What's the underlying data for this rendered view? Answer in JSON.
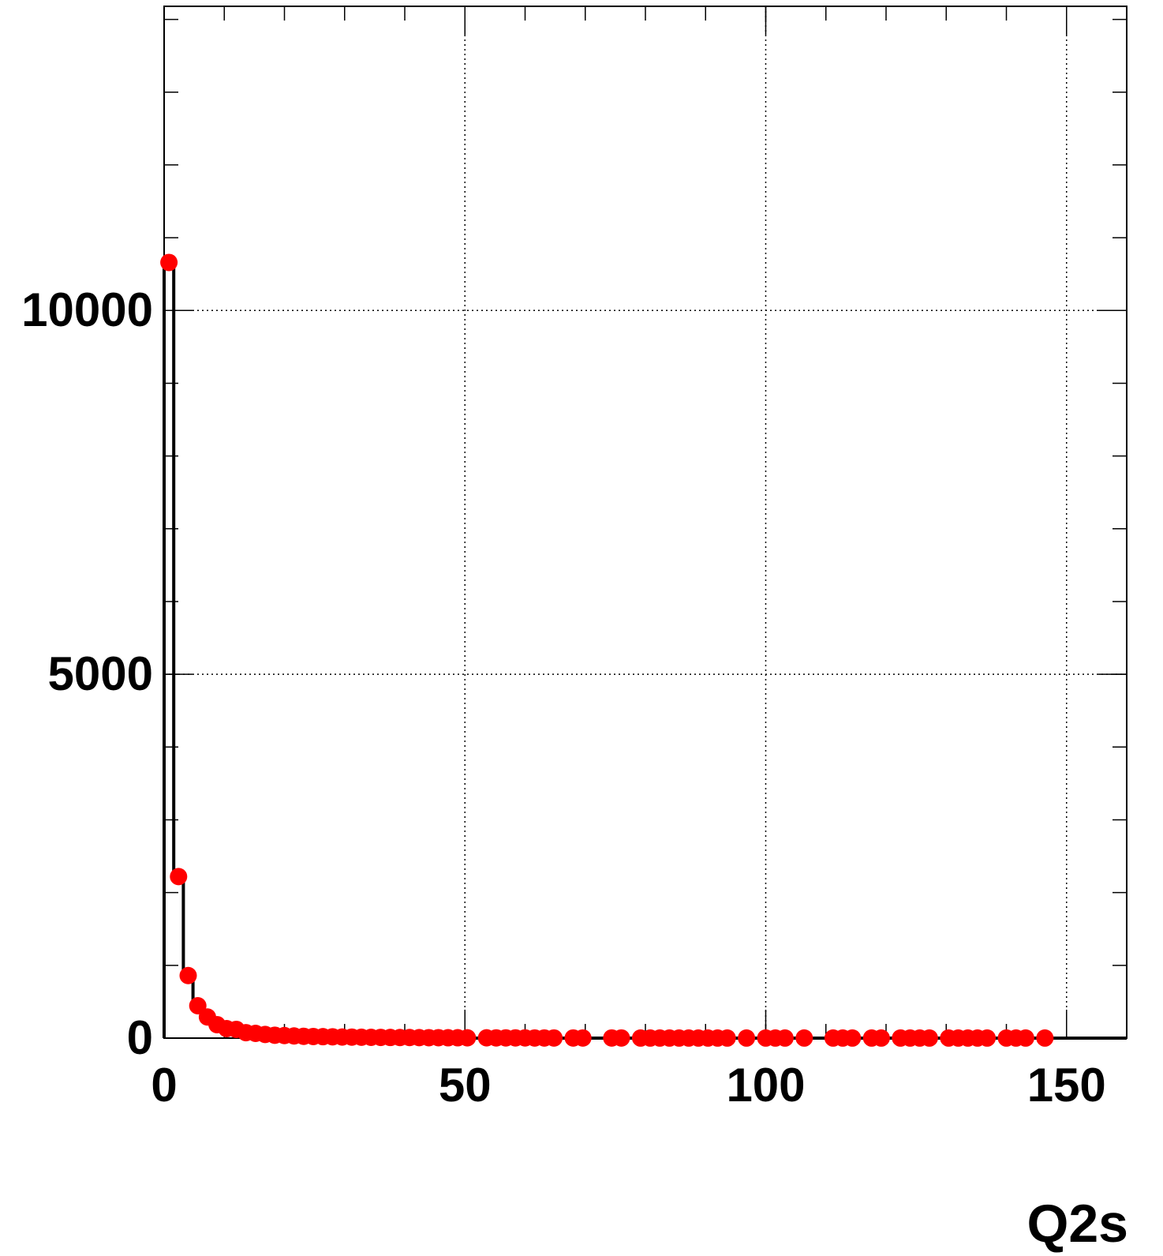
{
  "chart_data": {
    "type": "histogram",
    "x_label": "Q2s",
    "bins": [
      0,
      1.6,
      3.2,
      4.8,
      6.4,
      8,
      9.6,
      11.2,
      12.8,
      14.4,
      16,
      17.6,
      19.2,
      20.8,
      22.4,
      24,
      25.6,
      27.2,
      28.8,
      30.4,
      32,
      33.6,
      35.2,
      36.8,
      38.4,
      40,
      41.6,
      43.2,
      44.8,
      46.4,
      48,
      49.6,
      51.2,
      52.8,
      54.4,
      56,
      57.6,
      59.2,
      60.8,
      62.4,
      64,
      65.6,
      67.2,
      68.8,
      70.4,
      72,
      73.6,
      75.2,
      76.8,
      78.4,
      80,
      81.6,
      83.2,
      84.8,
      86.4,
      88,
      89.6,
      91.2,
      92.8,
      94.4,
      96,
      97.6,
      99.2,
      100.8,
      102.4,
      104,
      105.6,
      107.2,
      108.8,
      110.4,
      112,
      113.6,
      115.2,
      116.8,
      118.4,
      120,
      121.6,
      123.2,
      124.8,
      126.4,
      128,
      129.6,
      131.2,
      132.8,
      134.4,
      136,
      137.6,
      139.2,
      140.8,
      142.4,
      144,
      145.6,
      147.2,
      148.8,
      150.4,
      152,
      153.6,
      155.2,
      156.8,
      158.4,
      160
    ],
    "values": [
      10660,
      2220,
      860,
      445,
      290,
      185,
      130,
      120,
      75,
      65,
      50,
      40,
      35,
      30,
      25,
      22,
      20,
      18,
      15,
      14,
      12,
      11,
      10,
      9,
      8,
      8,
      7,
      6,
      6,
      5,
      5,
      4,
      0,
      4,
      3,
      3,
      3,
      3,
      2,
      2,
      2,
      0,
      2,
      2,
      0,
      0,
      2,
      2,
      0,
      1,
      1,
      1,
      1,
      1,
      1,
      1,
      1,
      1,
      1,
      0,
      1,
      0,
      1,
      1,
      1,
      0,
      1,
      0,
      0,
      1,
      1,
      1,
      0,
      1,
      1,
      0,
      1,
      1,
      1,
      1,
      0,
      1,
      1,
      1,
      1,
      1,
      0,
      1,
      1,
      1,
      0,
      1,
      0,
      0,
      0,
      0,
      0,
      0,
      0,
      0
    ],
    "line_color": "#000000",
    "marker_color": "#ff0000",
    "xlim": [
      0,
      160
    ],
    "ylim": [
      0,
      14180
    ],
    "xticks": [
      0,
      50,
      100,
      150
    ],
    "yticks": [
      0,
      5000,
      10000
    ],
    "grid": true
  }
}
